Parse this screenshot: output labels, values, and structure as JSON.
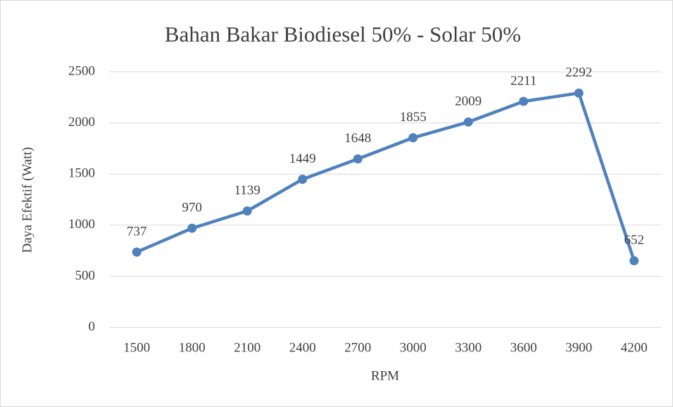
{
  "chart_data": {
    "type": "line",
    "title": "Bahan Bakar Biodiesel 50% - Solar 50%",
    "x_label": "RPM",
    "y_label": "Daya Efektif (Watt)",
    "categories": [
      "1500",
      "1800",
      "2100",
      "2400",
      "2700",
      "3000",
      "3300",
      "3600",
      "3900",
      "4200"
    ],
    "series": [
      {
        "name": "Daya Efektif",
        "color": "#4f81bd",
        "values": [
          737,
          970,
          1139,
          1449,
          1648,
          1855,
          2009,
          2211,
          2292,
          652
        ]
      }
    ],
    "ylim": [
      0,
      2500
    ],
    "yticks": [
      0,
      500,
      1000,
      1500,
      2000,
      2500
    ],
    "grid": true
  }
}
